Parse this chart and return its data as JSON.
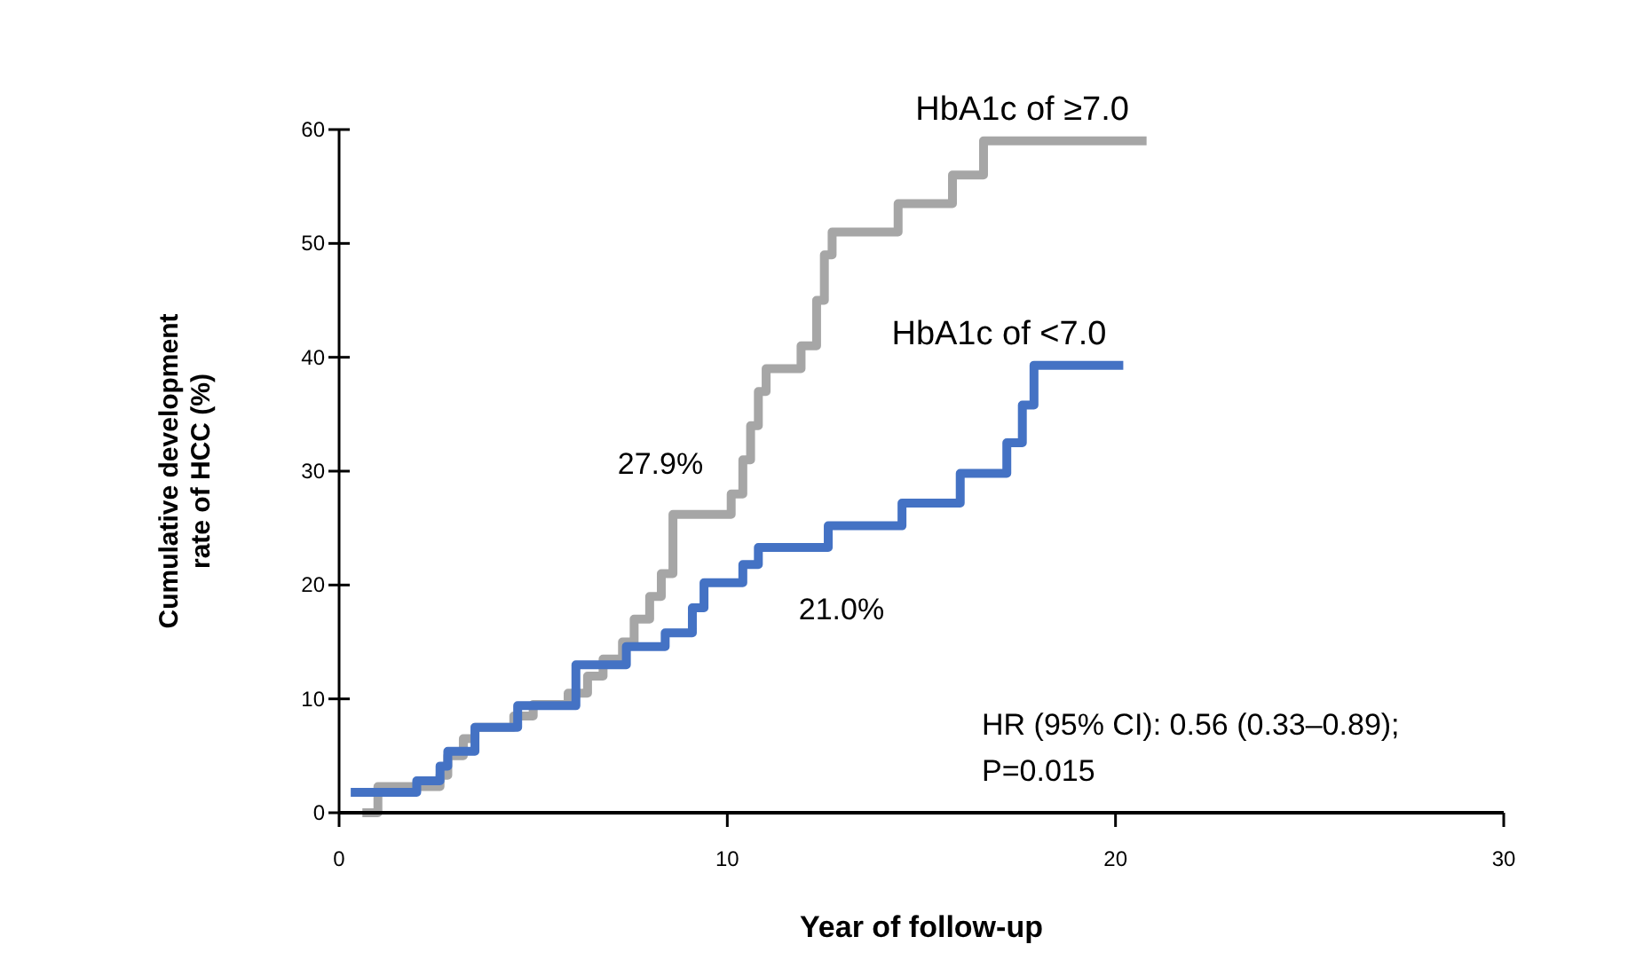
{
  "chart_data": {
    "type": "step",
    "xlabel": "Year of follow-up",
    "ylabel": "Cumulative development\nrate of HCC (%)",
    "xlim": [
      0,
      30
    ],
    "xticks": [
      0,
      10,
      20,
      30
    ],
    "ylim": [
      0,
      60
    ],
    "yticks": [
      0,
      10,
      20,
      30,
      40,
      50,
      60
    ],
    "grid": false,
    "marker": "none",
    "line_style": "solid",
    "series": [
      {
        "name": "HbA1c of ≥7.0",
        "color": "#a6a6a6",
        "x": [
          0.6,
          1.0,
          2.6,
          2.8,
          3.2,
          3.5,
          4.5,
          5.0,
          5.9,
          6.4,
          6.8,
          7.3,
          7.6,
          8.0,
          8.3,
          8.6,
          10.1,
          10.4,
          10.6,
          10.8,
          11.0,
          11.9,
          12.3,
          12.5,
          12.7,
          14.4,
          15.8,
          16.6,
          20.8
        ],
        "values": [
          0,
          2.3,
          3.3,
          5.0,
          6.5,
          7.5,
          8.5,
          9.5,
          10.5,
          12,
          13.5,
          15,
          17,
          19,
          21,
          26.2,
          28,
          31,
          34,
          37,
          39,
          41,
          45,
          49,
          51,
          53.5,
          56,
          59,
          59
        ]
      },
      {
        "name": "HbA1c of <7.0",
        "color": "#4472c4",
        "x": [
          0.3,
          2.0,
          2.6,
          2.8,
          3.5,
          4.6,
          6.1,
          7.4,
          8.4,
          9.1,
          9.4,
          10.4,
          10.8,
          12.6,
          14.5,
          16.0,
          17.2,
          17.6,
          17.9,
          20.2
        ],
        "values": [
          1.8,
          2.8,
          4.1,
          5.4,
          7.5,
          9.4,
          13,
          14.6,
          15.8,
          18,
          20.2,
          21.8,
          23.3,
          25.2,
          27.2,
          29.8,
          32.5,
          35.8,
          39.3,
          39.3
        ]
      }
    ],
    "annotations": [
      "27.9%",
      "21.0%",
      "HR (95% CI): 0.56 (0.33–0.89);",
      "P=0.015"
    ]
  }
}
